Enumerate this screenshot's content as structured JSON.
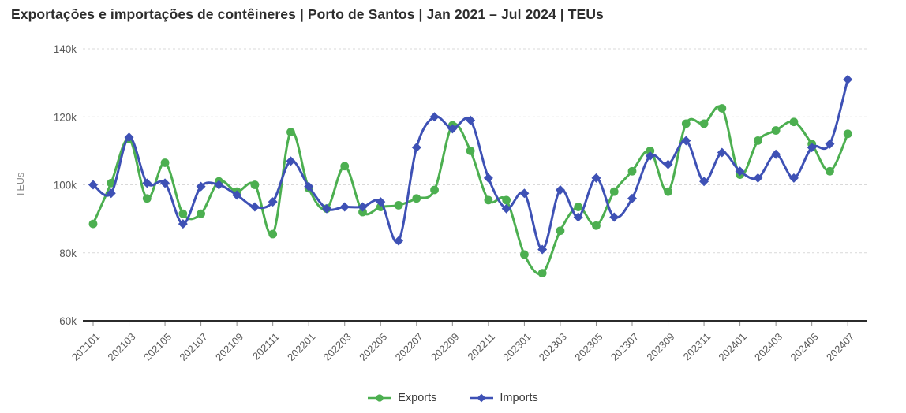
{
  "title": "Exportações e importações de contêineres | Porto de Santos | Jan 2021 – Jul 2024 | TEUs",
  "colors": {
    "exports": "#4caf50",
    "imports": "#3e51b5",
    "title_text": "#2d2d2d",
    "tick_text": "#595959",
    "gridline": "#d9d9d9",
    "axis_line": "#2b2b2b",
    "axis_title_text": "#8a8a8a"
  },
  "chart_data": {
    "type": "line",
    "title": "Exportações e importações de contêineres | Porto de Santos | Jan 2021 – Jul 2024 | TEUs",
    "xlabel": "",
    "ylabel": "TEUs",
    "ylim": [
      60000,
      140000
    ],
    "y_ticks": [
      "60k",
      "80k",
      "100k",
      "120k",
      "140k"
    ],
    "grid": "horizontal-dashed",
    "legend_position": "bottom-center",
    "x": [
      "202101",
      "202102",
      "202103",
      "202104",
      "202105",
      "202106",
      "202107",
      "202108",
      "202109",
      "202110",
      "202111",
      "202112",
      "202201",
      "202202",
      "202203",
      "202204",
      "202205",
      "202206",
      "202207",
      "202208",
      "202209",
      "202210",
      "202211",
      "202212",
      "202301",
      "202302",
      "202303",
      "202304",
      "202305",
      "202306",
      "202307",
      "202308",
      "202309",
      "202310",
      "202311",
      "202312",
      "202401",
      "202402",
      "202403",
      "202404",
      "202405",
      "202406",
      "202407"
    ],
    "x_tick_labels": [
      "202101",
      "202103",
      "202105",
      "202107",
      "202109",
      "202111",
      "202201",
      "202203",
      "202205",
      "202207",
      "202209",
      "202211",
      "202301",
      "202303",
      "202305",
      "202307",
      "202309",
      "202311",
      "202401",
      "202403",
      "202405",
      "202407"
    ],
    "series": [
      {
        "name": "Exports",
        "marker": "circle",
        "color": "#4caf50",
        "values": [
          88500,
          100500,
          113500,
          96000,
          106500,
          91500,
          91500,
          101000,
          98000,
          100000,
          85500,
          115500,
          99000,
          93000,
          105500,
          92000,
          93500,
          94000,
          96000,
          98500,
          117500,
          110000,
          95500,
          95500,
          79500,
          74000,
          86500,
          93500,
          88000,
          98000,
          104000,
          110000,
          98000,
          118000,
          118000,
          122500,
          103000,
          113000,
          116000,
          118500,
          112000,
          104000,
          115000
        ]
      },
      {
        "name": "Imports",
        "marker": "diamond",
        "color": "#3e51b5",
        "values": [
          100000,
          97500,
          114000,
          100500,
          100500,
          88500,
          99500,
          100000,
          97000,
          93500,
          95000,
          107000,
          99500,
          93000,
          93500,
          93500,
          95000,
          83500,
          111000,
          120000,
          116500,
          119000,
          102000,
          93000,
          97500,
          81000,
          98500,
          90500,
          102000,
          90500,
          96000,
          108500,
          106000,
          113000,
          101000,
          109500,
          104000,
          102000,
          109000,
          102000,
          111000,
          112000,
          131000
        ]
      }
    ]
  },
  "legend": {
    "items": [
      {
        "label": "Exports"
      },
      {
        "label": "Imports"
      }
    ]
  }
}
